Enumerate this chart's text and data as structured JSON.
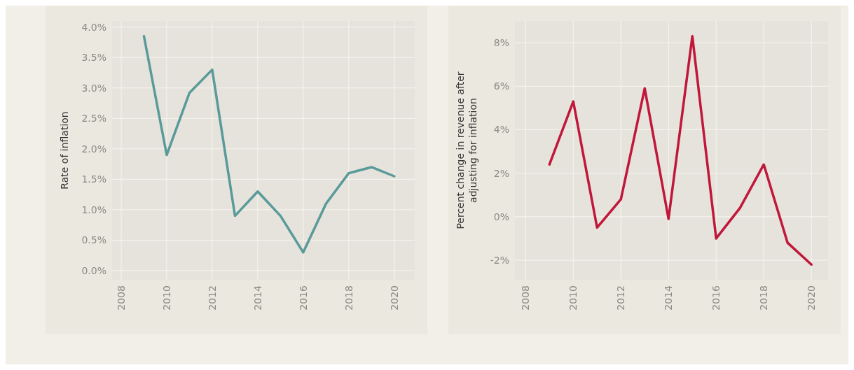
{
  "chart_data": [
    {
      "type": "line",
      "ylabel": "Rate of inflation",
      "x": [
        2009,
        2010,
        2011,
        2012,
        2013,
        2014,
        2015,
        2016,
        2017,
        2018,
        2019,
        2020
      ],
      "series": [
        {
          "color": "#5a9a9a",
          "values": [
            3.85,
            1.9,
            2.92,
            3.3,
            0.9,
            1.3,
            0.9,
            0.3,
            1.1,
            1.6,
            1.7,
            1.55
          ]
        }
      ],
      "xlim": [
        2007.6,
        2020.9
      ],
      "xticks": [
        2008,
        2010,
        2012,
        2014,
        2016,
        2018,
        2020
      ],
      "ylim": [
        -0.15,
        4.1
      ],
      "yticks": [
        {
          "value": 0,
          "label": "0.0%"
        },
        {
          "value": 0.5,
          "label": "0.5%"
        },
        {
          "value": 1,
          "label": "1.0%"
        },
        {
          "value": 1.5,
          "label": "1.5%"
        },
        {
          "value": 2,
          "label": "2.0%"
        },
        {
          "value": 2.5,
          "label": "2.5%"
        },
        {
          "value": 3,
          "label": "3.0%"
        },
        {
          "value": 3.5,
          "label": "3.5%"
        },
        {
          "value": 4,
          "label": "4.0%"
        }
      ],
      "grid": true,
      "line_style": "solid",
      "marker": "none"
    },
    {
      "type": "line",
      "ylabel": "Percent change in revenue after adjusting for inflation",
      "x": [
        2009,
        2010,
        2011,
        2012,
        2013,
        2014,
        2015,
        2016,
        2017,
        2018,
        2019,
        2020
      ],
      "series": [
        {
          "color": "#c0173a",
          "values": [
            2.4,
            5.3,
            -0.5,
            0.8,
            5.9,
            -0.1,
            8.3,
            -1.0,
            0.4,
            2.4,
            -1.2,
            -2.2
          ]
        }
      ],
      "xlim": [
        2007.55,
        2020.7
      ],
      "xticks": [
        2008,
        2010,
        2012,
        2014,
        2016,
        2018,
        2020
      ],
      "ylim": [
        -2.9,
        9.0
      ],
      "yticks": [
        {
          "value": -2,
          "label": "-2%"
        },
        {
          "value": 0,
          "label": "0%"
        },
        {
          "value": 2,
          "label": "2%"
        },
        {
          "value": 4,
          "label": "4%"
        },
        {
          "value": 6,
          "label": "6%"
        },
        {
          "value": 8,
          "label": "8%"
        }
      ],
      "grid": true,
      "line_style": "solid",
      "marker": "none"
    }
  ]
}
